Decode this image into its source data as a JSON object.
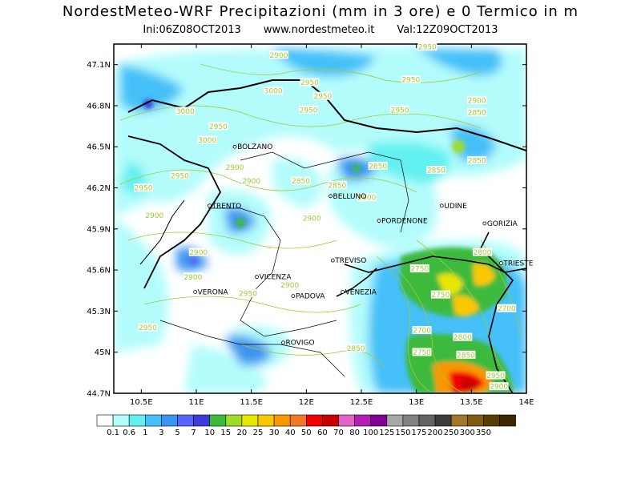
{
  "header": {
    "title": "NordestMeteo-WRF Precipitazioni (mm in 3 ore) e 0 Termico in m",
    "init": "Ini:06Z08OCT2013",
    "site": "www.nordestmeteo.it",
    "valid": "Val:12Z09OCT2013"
  },
  "map": {
    "lon_range": [
      10.25,
      14.0
    ],
    "lat_range": [
      44.7,
      47.25
    ],
    "lon_ticks": [
      {
        "value": 10.5,
        "label": "10.5E"
      },
      {
        "value": 11,
        "label": "11E"
      },
      {
        "value": 11.5,
        "label": "11.5E"
      },
      {
        "value": 12,
        "label": "12E"
      },
      {
        "value": 12.5,
        "label": "12.5E"
      },
      {
        "value": 13,
        "label": "13E"
      },
      {
        "value": 13.5,
        "label": "13.5E"
      },
      {
        "value": 14,
        "label": "14E"
      }
    ],
    "lat_ticks": [
      {
        "value": 44.7,
        "label": "44.7N"
      },
      {
        "value": 45,
        "label": "45N"
      },
      {
        "value": 45.3,
        "label": "45.3N"
      },
      {
        "value": 45.6,
        "label": "45.6N"
      },
      {
        "value": 45.9,
        "label": "45.9N"
      },
      {
        "value": 46.2,
        "label": "46.2N"
      },
      {
        "value": 46.5,
        "label": "46.5N"
      },
      {
        "value": 46.8,
        "label": "46.8N"
      },
      {
        "value": 47.1,
        "label": "47.1N"
      }
    ],
    "cities": [
      {
        "name": "BOLZANO",
        "lon": 11.35,
        "lat": 46.5
      },
      {
        "name": "TRENTO",
        "lon": 11.12,
        "lat": 46.07
      },
      {
        "name": "BELLUNO",
        "lon": 12.22,
        "lat": 46.14
      },
      {
        "name": "UDINE",
        "lon": 13.23,
        "lat": 46.07
      },
      {
        "name": "GORIZIA",
        "lon": 13.62,
        "lat": 45.94
      },
      {
        "name": "PORDENONE",
        "lon": 12.66,
        "lat": 45.96
      },
      {
        "name": "TREVISO",
        "lon": 12.24,
        "lat": 45.67
      },
      {
        "name": "TRIESTE",
        "lon": 13.77,
        "lat": 45.65
      },
      {
        "name": "VICENZA",
        "lon": 11.55,
        "lat": 45.55
      },
      {
        "name": "PADOVA",
        "lon": 11.88,
        "lat": 45.41
      },
      {
        "name": "VENEZIA",
        "lon": 12.33,
        "lat": 45.44
      },
      {
        "name": "VERONA",
        "lon": 10.99,
        "lat": 45.44
      },
      {
        "name": "ROVIGO",
        "lon": 11.79,
        "lat": 45.07
      }
    ],
    "freezing_level_labels": [
      {
        "text": "2950",
        "lon": 13.1,
        "lat": 47.22
      },
      {
        "text": "2900",
        "lon": 11.75,
        "lat": 47.16
      },
      {
        "text": "2950",
        "lon": 12.95,
        "lat": 46.98
      },
      {
        "text": "3000",
        "lon": 11.7,
        "lat": 46.9
      },
      {
        "text": "2950",
        "lon": 12.15,
        "lat": 46.86
      },
      {
        "text": "2950",
        "lon": 12.03,
        "lat": 46.96
      },
      {
        "text": "3000",
        "lon": 10.9,
        "lat": 46.75
      },
      {
        "text": "2950",
        "lon": 11.2,
        "lat": 46.64
      },
      {
        "text": "3000",
        "lon": 11.1,
        "lat": 46.54
      },
      {
        "text": "2950",
        "lon": 12.02,
        "lat": 46.76
      },
      {
        "text": "2950",
        "lon": 12.85,
        "lat": 46.76
      },
      {
        "text": "2900",
        "lon": 13.55,
        "lat": 46.83
      },
      {
        "text": "2850",
        "lon": 13.55,
        "lat": 46.74
      },
      {
        "text": "2950",
        "lon": 10.85,
        "lat": 46.28
      },
      {
        "text": "2900",
        "lon": 11.35,
        "lat": 46.34
      },
      {
        "text": "2900",
        "lon": 11.5,
        "lat": 46.24
      },
      {
        "text": "2850",
        "lon": 11.95,
        "lat": 46.24
      },
      {
        "text": "2850",
        "lon": 12.65,
        "lat": 46.35
      },
      {
        "text": "2850",
        "lon": 13.18,
        "lat": 46.32
      },
      {
        "text": "2850",
        "lon": 13.55,
        "lat": 46.39
      },
      {
        "text": "2850",
        "lon": 12.28,
        "lat": 46.21
      },
      {
        "text": "2900",
        "lon": 12.55,
        "lat": 46.12
      },
      {
        "text": "2950",
        "lon": 10.52,
        "lat": 46.19
      },
      {
        "text": "2900",
        "lon": 10.62,
        "lat": 45.99
      },
      {
        "text": "2900",
        "lon": 12.05,
        "lat": 45.97
      },
      {
        "text": "2900",
        "lon": 11.02,
        "lat": 45.72
      },
      {
        "text": "2900",
        "lon": 10.97,
        "lat": 45.54
      },
      {
        "text": "2900",
        "lon": 11.85,
        "lat": 45.48
      },
      {
        "text": "2950",
        "lon": 11.47,
        "lat": 45.42
      },
      {
        "text": "2750",
        "lon": 13.03,
        "lat": 45.6
      },
      {
        "text": "2750",
        "lon": 13.22,
        "lat": 45.41
      },
      {
        "text": "2800",
        "lon": 13.6,
        "lat": 45.72
      },
      {
        "text": "2700",
        "lon": 13.82,
        "lat": 45.31
      },
      {
        "text": "2700",
        "lon": 13.05,
        "lat": 45.15
      },
      {
        "text": "2800",
        "lon": 13.42,
        "lat": 45.1
      },
      {
        "text": "2750",
        "lon": 13.05,
        "lat": 44.99
      },
      {
        "text": "2850",
        "lon": 13.45,
        "lat": 44.97
      },
      {
        "text": "2950",
        "lon": 10.56,
        "lat": 45.17
      },
      {
        "text": "2850",
        "lon": 12.45,
        "lat": 45.02
      },
      {
        "text": "2950",
        "lon": 13.72,
        "lat": 44.82
      },
      {
        "text": "2900",
        "lon": 13.75,
        "lat": 44.74
      }
    ]
  },
  "legend": {
    "colors": [
      "#ffffff",
      "#b4fcfc",
      "#64f0f0",
      "#44c0f8",
      "#3c94f0",
      "#5a64fa",
      "#3c3cdc",
      "#3cba3c",
      "#a0dc28",
      "#e6e600",
      "#fac800",
      "#fa9600",
      "#f07828",
      "#f00000",
      "#c80000",
      "#e164c8",
      "#b41eb4",
      "#820096",
      "#a8a8a8",
      "#828282",
      "#646464",
      "#3c3c3c",
      "#a07828",
      "#825a14",
      "#5a3c00",
      "#3c2800"
    ],
    "labels": [
      "0.1",
      "0.6",
      "1",
      "3",
      "5",
      "7",
      "10",
      "15",
      "20",
      "25",
      "30",
      "40",
      "50",
      "60",
      "70",
      "80",
      "100",
      "125",
      "150",
      "175",
      "200",
      "250",
      "300",
      "350"
    ]
  }
}
